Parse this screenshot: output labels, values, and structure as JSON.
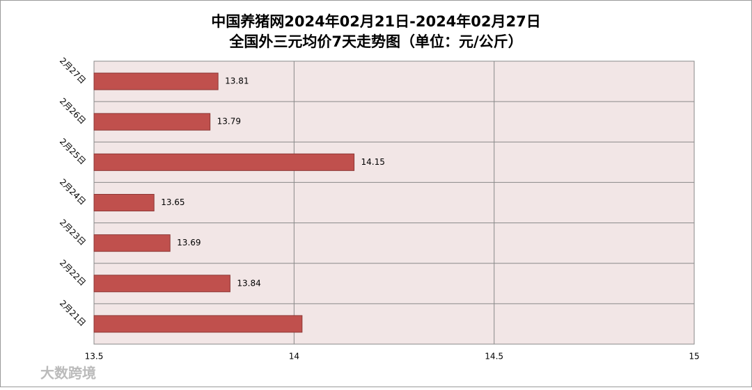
{
  "chart_data": {
    "type": "barh",
    "title": "中国养猪网2024年02月21日-2024年02月27日",
    "subtitle": "全国外三元均价7天走势图（单位：元/公斤）",
    "categories": [
      "2月27日",
      "2月26日",
      "2月25日",
      "2月24日",
      "2月23日",
      "2月22日",
      "2月21日"
    ],
    "values": [
      13.81,
      13.79,
      14.15,
      13.65,
      13.69,
      13.84,
      14.02
    ],
    "value_labels": [
      "13.81",
      "13.79",
      "14.15",
      "13.65",
      "13.69",
      "13.84",
      null
    ],
    "color": "#c0504d",
    "xlim": [
      13.5,
      15
    ],
    "xticks": [
      13.5,
      14,
      14.5,
      15
    ],
    "grid": true,
    "watermark": "大数跨境"
  }
}
